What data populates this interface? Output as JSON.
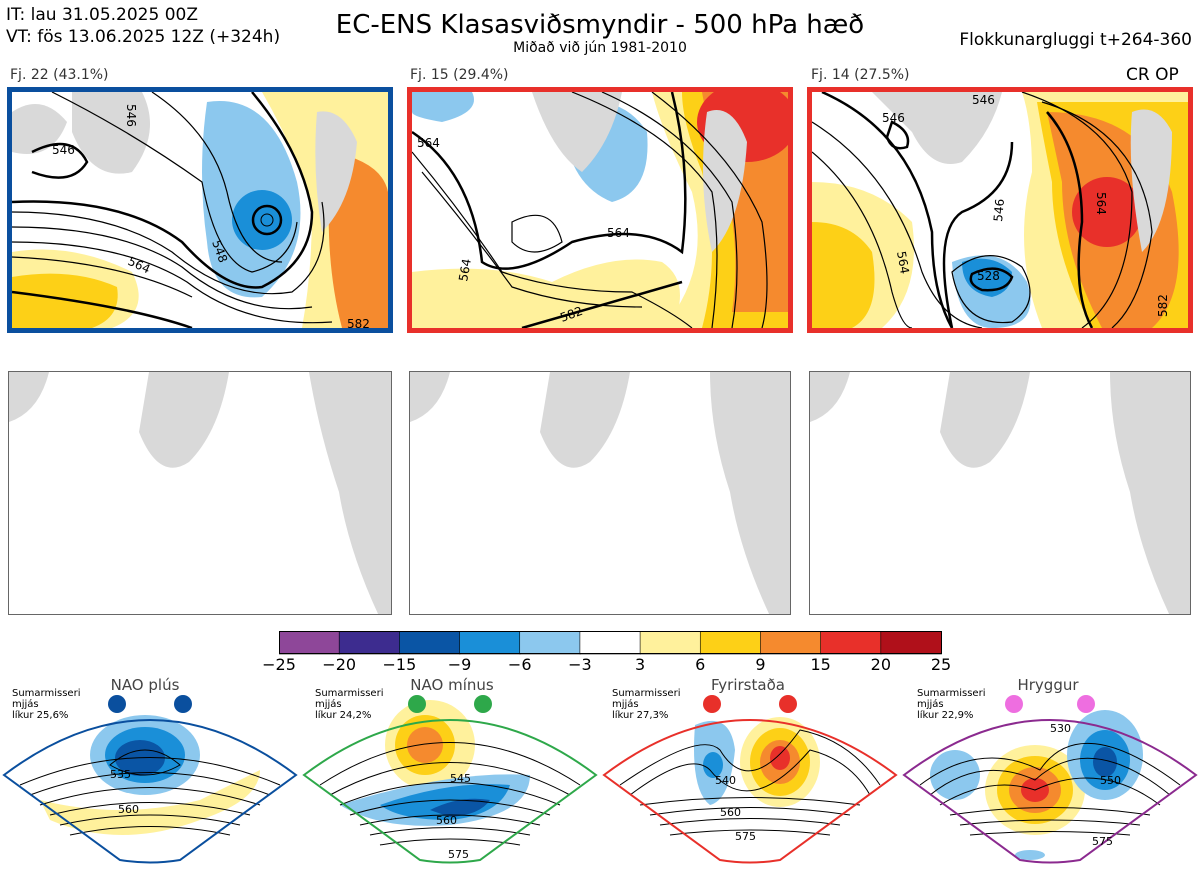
{
  "header": {
    "it": "IT: lau 31.05.2025 00Z",
    "vt": "VT: fös 13.06.2025 12Z  (+324h)",
    "title": "EC-ENS Klasasviðsmyndir - 500 hPa hæð",
    "subtitle": "Miðað við jún 1981-2010",
    "window": "Flokkunargluggi t+264-360",
    "cr_op": "CR OP"
  },
  "clusters": [
    {
      "label": "Fj. 22 (43.1%)",
      "border_color": "#0a4f9e",
      "contour_labels": [
        "546",
        "548",
        "564",
        "582",
        "546"
      ]
    },
    {
      "label": "Fj. 15 (29.4%)",
      "border_color": "#e8302a",
      "contour_labels": [
        "564",
        "582",
        "564",
        "564"
      ]
    },
    {
      "label": "Fj. 14 (27.5%)",
      "border_color": "#e8302a",
      "contour_labels": [
        "546",
        "546",
        "528",
        "564",
        "564",
        "582",
        "546"
      ]
    }
  ],
  "colorbar": {
    "ticks": [
      "−25",
      "−20",
      "−15",
      "−9",
      "−6",
      "−3",
      "3",
      "6",
      "9",
      "15",
      "20",
      "25"
    ],
    "colors": [
      "#8e4799",
      "#3d2c8f",
      "#0a55a5",
      "#1a8fd8",
      "#8cc8ee",
      "#ffffff",
      "#fff19c",
      "#fdd017",
      "#f58a2e",
      "#e8302a",
      "#b0101a"
    ]
  },
  "regimes": [
    {
      "name": "NAO plús",
      "season": "Sumarmisseri",
      "mean": "mjjás",
      "prob": "líkur 25,6%",
      "color": "#0a4f9e",
      "dot_color": "#0a4f9e",
      "labels": [
        "535",
        "560"
      ]
    },
    {
      "name": "NAO mínus",
      "season": "Sumarmisseri",
      "mean": "mjjás",
      "prob": "líkur 24,2%",
      "color": "#2ea84a",
      "dot_color": "#2ea84a",
      "labels": [
        "545",
        "560",
        "575"
      ]
    },
    {
      "name": "Fyrirstaða",
      "season": "Sumarmisseri",
      "mean": "mjjás",
      "prob": "líkur 27,3%",
      "color": "#e8302a",
      "dot_color": "#e8302a",
      "labels": [
        "540",
        "560",
        "575"
      ]
    },
    {
      "name": "Hryggur",
      "season": "Sumarmisseri",
      "mean": "mjjás",
      "prob": "líkur 22,9%",
      "color": "#8b2a8f",
      "dot_color": "#ee6ee0",
      "labels": [
        "530",
        "550",
        "575"
      ]
    }
  ]
}
